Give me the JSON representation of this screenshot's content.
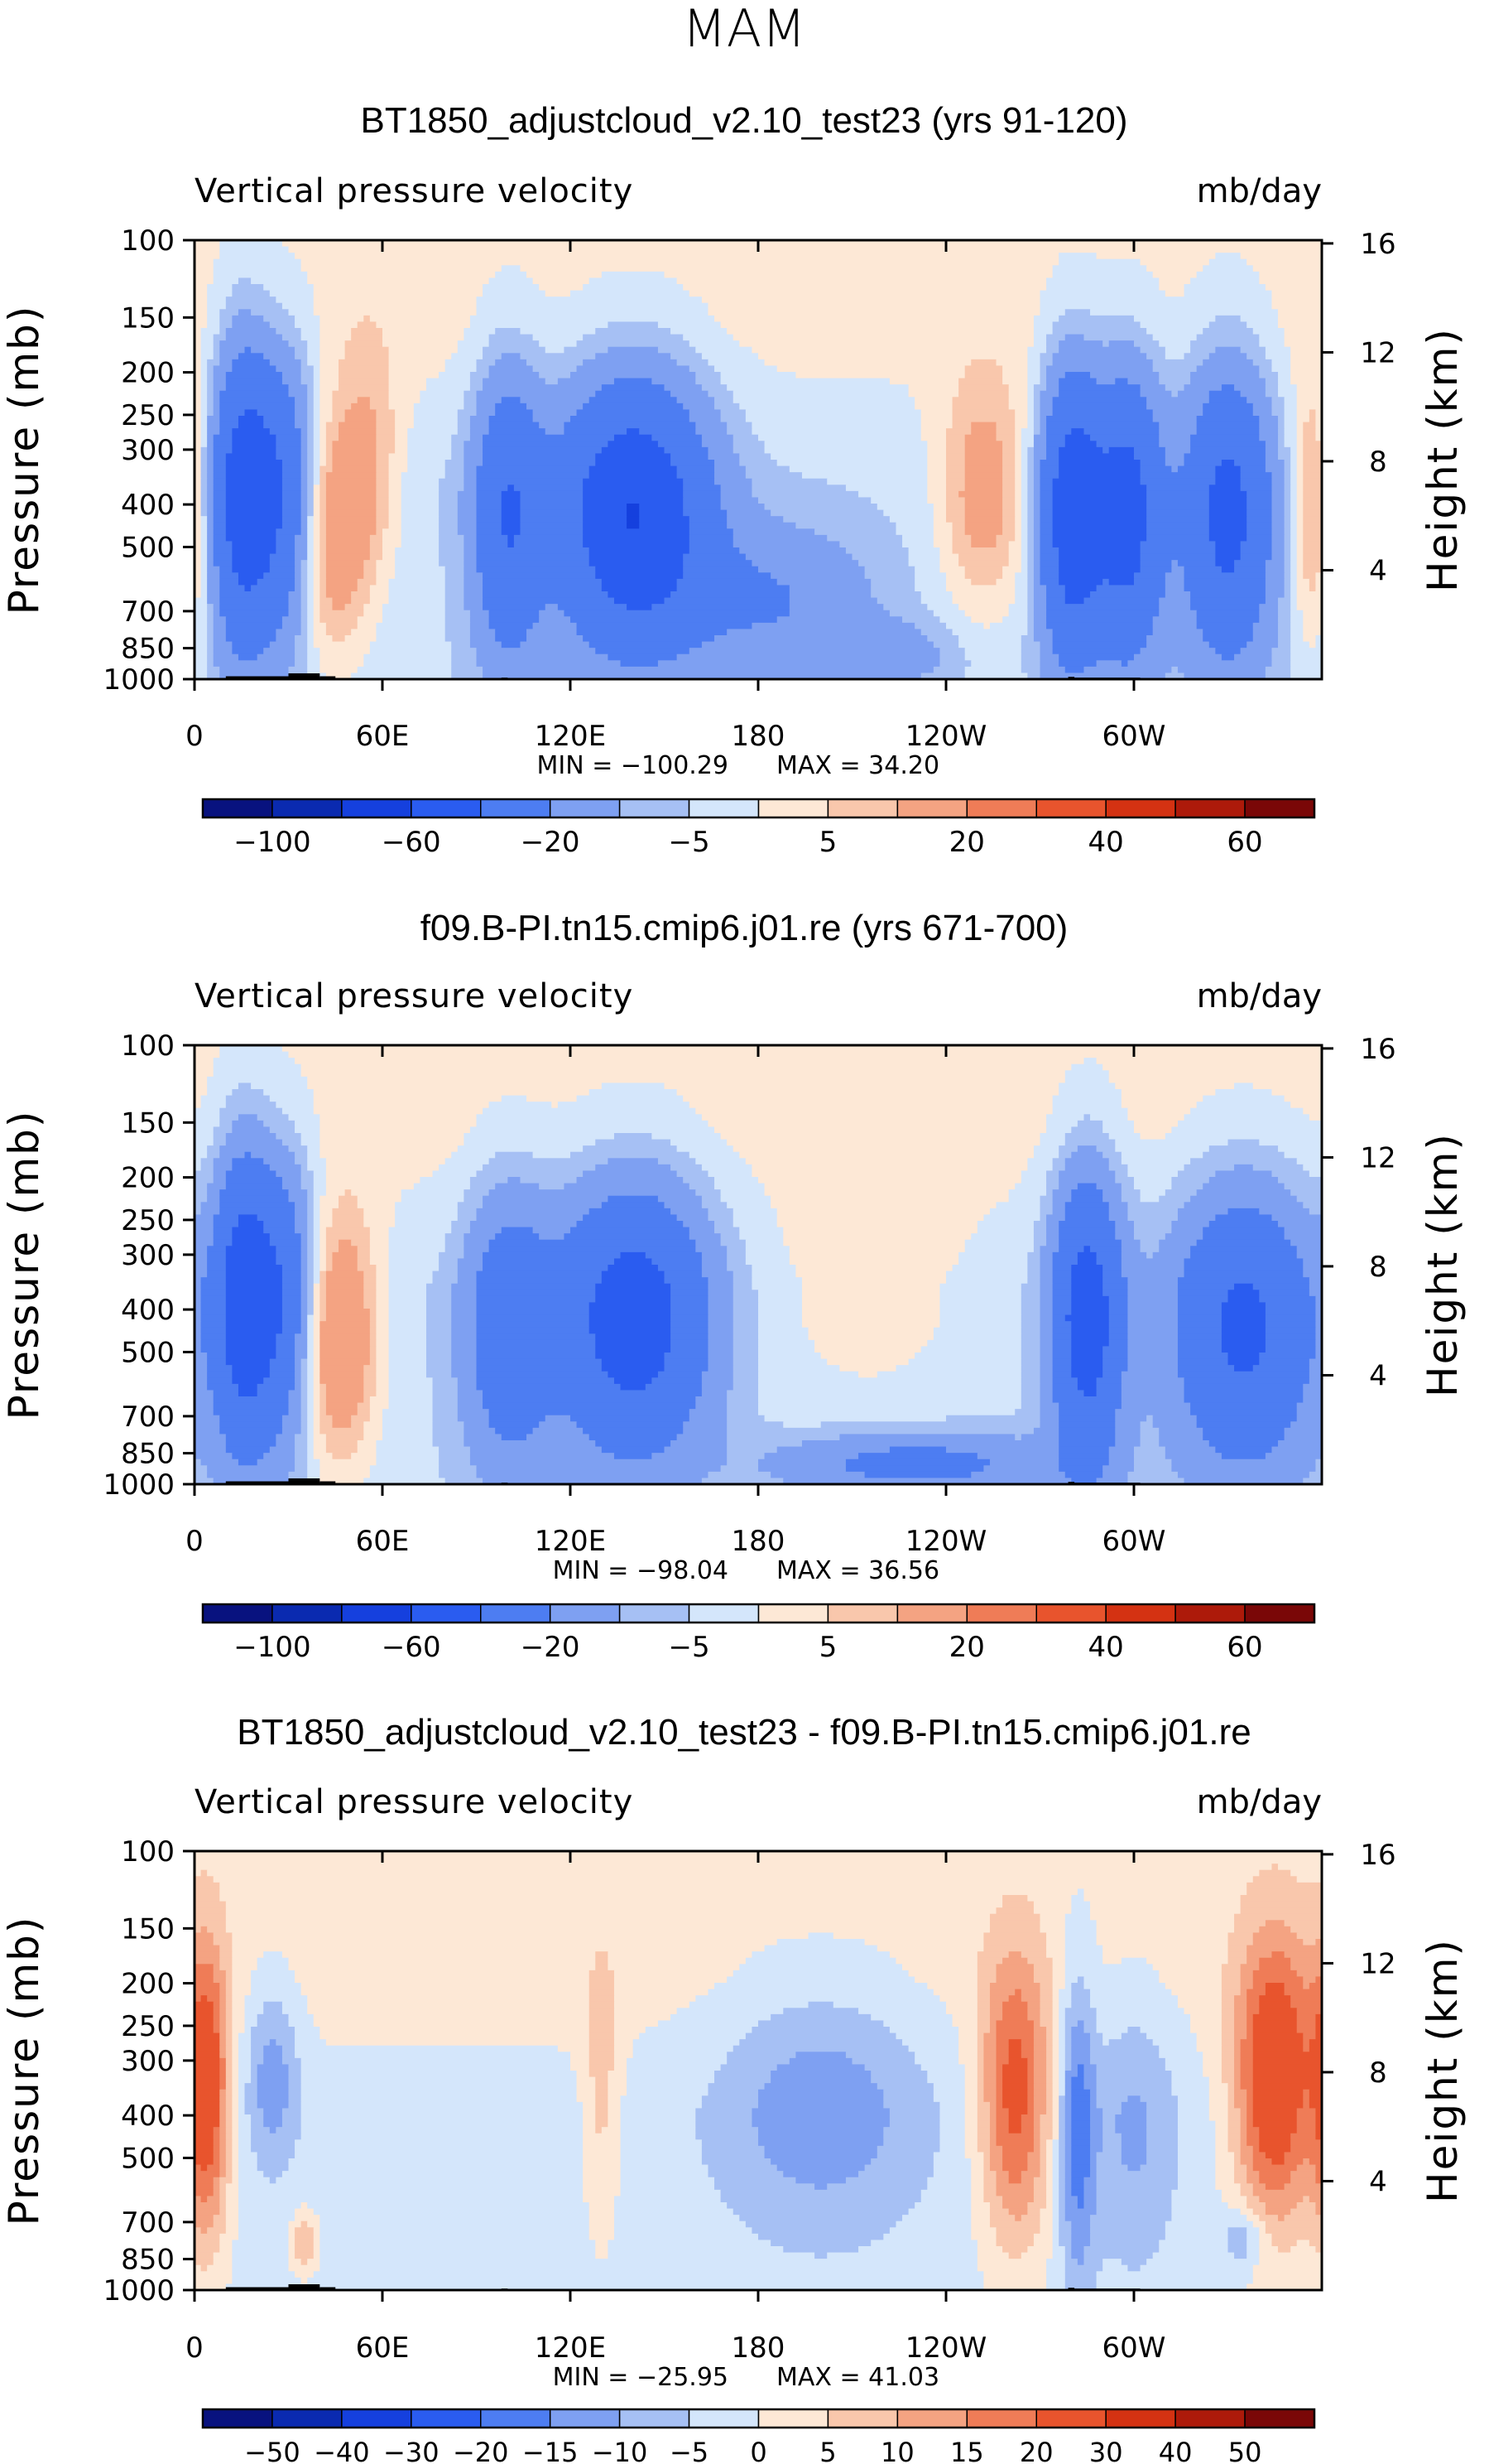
{
  "figure_title": "MAM",
  "colors": {
    "main": [
      "#08127f",
      "#0a2ab0",
      "#1540de",
      "#2a5cf0",
      "#4d7df2",
      "#7ea0f2",
      "#a6c0f4",
      "#d4e6fb",
      "#fde8d6",
      "#f9c7ac",
      "#f4a382",
      "#ef7c57",
      "#e8542d",
      "#d43212",
      "#ad1a0a",
      "#7a0707"
    ],
    "diff": [
      "#08127f",
      "#0a2ab0",
      "#1540de",
      "#2a5cf0",
      "#4d7df2",
      "#7ea0f2",
      "#a6c0f4",
      "#d4e6fb",
      "#fde8d6",
      "#f9c7ac",
      "#f4a382",
      "#ef7c57",
      "#e8542d",
      "#d43212",
      "#ad1a0a",
      "#7a0707"
    ],
    "land": "#000000"
  },
  "chart_data": [
    {
      "type": "heatmap",
      "title": "BT1850_adjustcloud_v2.10_test23 (yrs 91-120)",
      "left_label": "Vertical pressure velocity",
      "right_label": "mb/day",
      "ylabel": "Pressure (mb)",
      "ylabel_right": "Height (km)",
      "x_ticks": [
        "0",
        "60E",
        "120E",
        "180",
        "120W",
        "60W"
      ],
      "x_tick_values": [
        0,
        60,
        120,
        180,
        240,
        300
      ],
      "xlim": [
        0,
        360
      ],
      "y_ticks": [
        "100",
        "150",
        "200",
        "250",
        "300",
        "400",
        "500",
        "700",
        "850",
        "1000"
      ],
      "y_tick_values": [
        100,
        150,
        200,
        250,
        300,
        400,
        500,
        700,
        850,
        1000
      ],
      "ylim": [
        1000,
        100
      ],
      "y_right_ticks": [
        "16",
        "12",
        "8",
        "4"
      ],
      "y_right_tick_values": [
        16,
        12,
        8,
        4
      ],
      "min_label": "MIN =  −100.29",
      "max_label": "MAX =    34.20",
      "min": -100.29,
      "max": 34.2,
      "colorbar_levels": [
        -100,
        -80,
        -60,
        -40,
        -20,
        -10,
        -5,
        0,
        5,
        10,
        20,
        30,
        40,
        50,
        60
      ],
      "colorbar_labels": [
        "−100",
        "−60",
        "−20",
        "−5",
        "5",
        "20",
        "40",
        "60"
      ],
      "colorbar_label_values": [
        -100,
        -60,
        -20,
        -5,
        5,
        20,
        40,
        60
      ],
      "features": [
        {
          "lon": 25,
          "p": 380,
          "value": -40,
          "sx": 10,
          "sp": 270
        },
        {
          "lon": 14,
          "p": 380,
          "value": -28,
          "sx": 6,
          "sp": 300
        },
        {
          "lon": 43,
          "p": 460,
          "value": 24,
          "sx": 8,
          "sp": 270
        },
        {
          "lon": 56,
          "p": 330,
          "value": 12,
          "sx": 7,
          "sp": 190
        },
        {
          "lon": 100,
          "p": 420,
          "value": -34,
          "sx": 8,
          "sp": 300
        },
        {
          "lon": 140,
          "p": 420,
          "value": -56,
          "sx": 17,
          "sp": 270
        },
        {
          "lon": 185,
          "p": 660,
          "value": -16,
          "sx": 22,
          "sp": 210
        },
        {
          "lon": 220,
          "p": 880,
          "value": -12,
          "sx": 16,
          "sp": 110
        },
        {
          "lon": 252,
          "p": 380,
          "value": 18,
          "sx": 10,
          "sp": 200
        },
        {
          "lon": 280,
          "p": 420,
          "value": -50,
          "sx": 7,
          "sp": 300
        },
        {
          "lon": 298,
          "p": 420,
          "value": -44,
          "sx": 8,
          "sp": 300
        },
        {
          "lon": 330,
          "p": 420,
          "value": -42,
          "sx": 10,
          "sp": 310
        },
        {
          "lon": 357,
          "p": 420,
          "value": 16,
          "sx": 5,
          "sp": 240
        }
      ],
      "background": -4,
      "upper_value": 2,
      "upper_blend": [
        0.2,
        0.55
      ]
    },
    {
      "type": "heatmap",
      "title": "f09.B-PI.tn15.cmip6.j01.re (yrs 671-700)",
      "left_label": "Vertical pressure velocity",
      "right_label": "mb/day",
      "ylabel": "Pressure (mb)",
      "ylabel_right": "Height (km)",
      "x_ticks": [
        "0",
        "60E",
        "120E",
        "180",
        "120W",
        "60W"
      ],
      "x_tick_values": [
        0,
        60,
        120,
        180,
        240,
        300
      ],
      "xlim": [
        0,
        360
      ],
      "y_ticks": [
        "100",
        "150",
        "200",
        "250",
        "300",
        "400",
        "500",
        "700",
        "850",
        "1000"
      ],
      "y_tick_values": [
        100,
        150,
        200,
        250,
        300,
        400,
        500,
        700,
        850,
        1000
      ],
      "ylim": [
        1000,
        100
      ],
      "y_right_ticks": [
        "16",
        "12",
        "8",
        "4"
      ],
      "y_right_tick_values": [
        16,
        12,
        8,
        4
      ],
      "min_label": "MIN =  −98.04",
      "max_label": "MAX =    36.56",
      "min": -98.04,
      "max": 36.56,
      "colorbar_levels": [
        -100,
        -80,
        -60,
        -40,
        -20,
        -10,
        -5,
        0,
        5,
        10,
        20,
        30,
        40,
        50,
        60
      ],
      "colorbar_labels": [
        "−100",
        "−60",
        "−20",
        "−5",
        "5",
        "20",
        "40",
        "60"
      ],
      "colorbar_label_values": [
        -100,
        -60,
        -20,
        -5,
        5,
        20,
        40,
        60
      ],
      "features": [
        {
          "lon": 25,
          "p": 380,
          "value": -40,
          "sx": 10,
          "sp": 270
        },
        {
          "lon": 14,
          "p": 380,
          "value": -28,
          "sx": 6,
          "sp": 300
        },
        {
          "lon": 45,
          "p": 460,
          "value": 28,
          "sx": 9,
          "sp": 270
        },
        {
          "lon": 100,
          "p": 440,
          "value": -28,
          "sx": 10,
          "sp": 300
        },
        {
          "lon": 140,
          "p": 420,
          "value": -48,
          "sx": 17,
          "sp": 270
        },
        {
          "lon": 215,
          "p": 380,
          "value": 6,
          "sx": 26,
          "sp": 210
        },
        {
          "lon": 230,
          "p": 900,
          "value": -22,
          "sx": 30,
          "sp": 110
        },
        {
          "lon": 285,
          "p": 420,
          "value": -48,
          "sx": 8,
          "sp": 300
        },
        {
          "lon": 335,
          "p": 440,
          "value": -40,
          "sx": 16,
          "sp": 300
        }
      ],
      "background": -4,
      "upper_value": 2,
      "upper_blend": [
        0.2,
        0.55
      ]
    },
    {
      "type": "heatmap",
      "title": "BT1850_adjustcloud_v2.10_test23 - f09.B-PI.tn15.cmip6.j01.re",
      "left_label": "Vertical pressure velocity",
      "right_label": "mb/day",
      "ylabel": "Pressure (mb)",
      "ylabel_right": "Height (km)",
      "x_ticks": [
        "0",
        "60E",
        "120E",
        "180",
        "120W",
        "60W"
      ],
      "x_tick_values": [
        0,
        60,
        120,
        180,
        240,
        300
      ],
      "xlim": [
        0,
        360
      ],
      "y_ticks": [
        "100",
        "150",
        "200",
        "250",
        "300",
        "400",
        "500",
        "700",
        "850",
        "1000"
      ],
      "y_tick_values": [
        100,
        150,
        200,
        250,
        300,
        400,
        500,
        700,
        850,
        1000
      ],
      "ylim": [
        1000,
        100
      ],
      "y_right_ticks": [
        "16",
        "12",
        "8",
        "4"
      ],
      "y_right_tick_values": [
        16,
        12,
        8,
        4
      ],
      "min_label": "MIN =  −25.95",
      "max_label": "MAX =    41.03",
      "min": -25.95,
      "max": 41.03,
      "colorbar_levels": [
        -50,
        -40,
        -30,
        -20,
        -15,
        -10,
        -5,
        0,
        5,
        10,
        15,
        20,
        30,
        40,
        50
      ],
      "colorbar_labels": [
        "−50",
        "−40",
        "−30",
        "−20",
        "−15",
        "−10",
        "−5",
        "0",
        "5",
        "10",
        "15",
        "20",
        "30",
        "40",
        "50"
      ],
      "colorbar_label_values": [
        -50,
        -40,
        -30,
        -20,
        -15,
        -10,
        -5,
        0,
        5,
        10,
        15,
        20,
        30,
        40,
        50
      ],
      "features": [
        {
          "lon": 4,
          "p": 360,
          "value": 26,
          "sx": 5,
          "sp": 260
        },
        {
          "lon": 25,
          "p": 320,
          "value": -12,
          "sx": 6,
          "sp": 130
        },
        {
          "lon": 35,
          "p": 780,
          "value": 12,
          "sx": 3,
          "sp": 90
        },
        {
          "lon": 130,
          "p": 350,
          "value": 8,
          "sx": 4,
          "sp": 250
        },
        {
          "lon": 200,
          "p": 380,
          "value": -12,
          "sx": 24,
          "sp": 230
        },
        {
          "lon": 262,
          "p": 370,
          "value": 24,
          "sx": 8,
          "sp": 260
        },
        {
          "lon": 282,
          "p": 420,
          "value": -16,
          "sx": 4,
          "sp": 350
        },
        {
          "lon": 300,
          "p": 420,
          "value": -9,
          "sx": 10,
          "sp": 280
        },
        {
          "lon": 345,
          "p": 340,
          "value": 30,
          "sx": 9,
          "sp": 240
        },
        {
          "lon": 335,
          "p": 760,
          "value": -10,
          "sx": 5,
          "sp": 90
        }
      ],
      "background": -2,
      "upper_value": 2,
      "upper_blend": [
        0.3,
        0.6
      ]
    }
  ]
}
